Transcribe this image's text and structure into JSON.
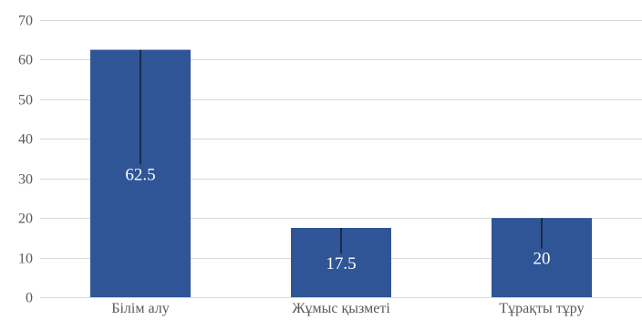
{
  "chart_data": {
    "type": "bar",
    "categories": [
      "Білім алу",
      "Жұмыс қызметі",
      "Тұрақты тұру"
    ],
    "series": [
      {
        "values": [
          62.5,
          17.5,
          20
        ],
        "color": "#2f5597"
      }
    ],
    "data_labels": [
      "62.5",
      "17.5",
      "20"
    ],
    "error_line_color": "#000000",
    "ylim": [
      0,
      70
    ],
    "y_ticks": [
      0,
      10,
      20,
      30,
      40,
      50,
      60,
      70
    ],
    "grid": true,
    "grid_color": "#d9d9d9",
    "title": "",
    "xlabel": "",
    "ylabel": ""
  }
}
